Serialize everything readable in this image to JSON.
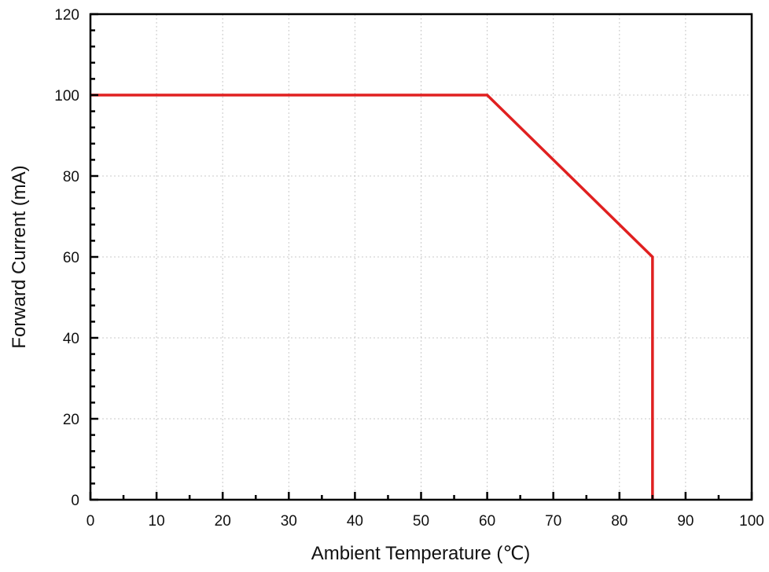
{
  "chart_data": {
    "type": "line",
    "title": "",
    "xlabel": "Ambient Temperature (℃)",
    "ylabel": "Forward Current (mA)",
    "xlim": [
      0,
      100
    ],
    "ylim": [
      0,
      120
    ],
    "x_ticks": [
      0,
      10,
      20,
      30,
      40,
      50,
      60,
      70,
      80,
      90,
      100
    ],
    "y_ticks": [
      0,
      20,
      40,
      60,
      80,
      100,
      120
    ],
    "grid": true,
    "series": [
      {
        "color": "#e02020",
        "x": [
          0,
          60,
          85,
          85
        ],
        "y": [
          100,
          100,
          60,
          0
        ]
      }
    ]
  }
}
